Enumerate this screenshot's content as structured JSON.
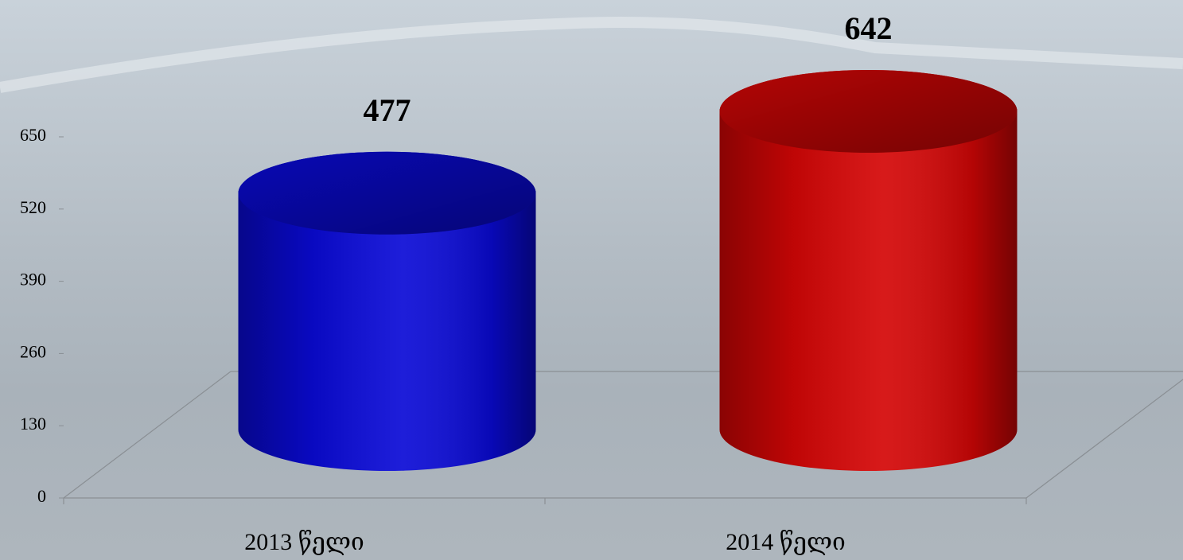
{
  "chart_data": {
    "type": "bar3d",
    "categories": [
      "2013 წელი",
      "2014 წელი"
    ],
    "values": [
      477,
      642
    ],
    "colors": [
      "#0a0ad6",
      "#d40606"
    ],
    "ylim": [
      0,
      650
    ],
    "yticks": [
      0,
      130,
      260,
      390,
      520,
      650
    ]
  }
}
